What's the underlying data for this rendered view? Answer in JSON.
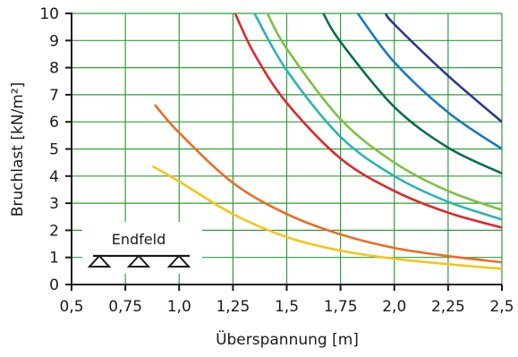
{
  "chart_data": {
    "type": "line",
    "title": "",
    "xlabel": "Überspannung [m]",
    "ylabel": "Bruchlast [kN/m²]",
    "xlim": [
      0.5,
      2.5
    ],
    "ylim": [
      0,
      10
    ],
    "x_ticks": [
      0.5,
      0.75,
      1.0,
      1.25,
      1.5,
      1.75,
      2.0,
      2.25,
      2.5
    ],
    "x_tick_labels": [
      "0,5",
      "0,75",
      "1,0",
      "1,25",
      "1,5",
      "1,75",
      "2,0",
      "2,25",
      "2,5"
    ],
    "y_ticks": [
      0,
      1,
      2,
      3,
      4,
      5,
      6,
      7,
      8,
      9,
      10
    ],
    "y_tick_labels": [
      "0",
      "1",
      "2",
      "3",
      "4",
      "5",
      "6",
      "7",
      "8",
      "9",
      "10"
    ],
    "grid": true,
    "legend": "none",
    "annotation": "Endfeld",
    "colors": {
      "grid": "#2e9e3a",
      "axes": "#1a1a1a"
    },
    "series": [
      {
        "color": "#f5c518",
        "x": [
          0.88,
          1.0,
          1.25,
          1.5,
          1.75,
          2.0,
          2.25,
          2.5
        ],
        "y": [
          4.35,
          3.8,
          2.6,
          1.75,
          1.25,
          0.95,
          0.75,
          0.58
        ]
      },
      {
        "color": "#ee6a24",
        "x": [
          0.89,
          1.0,
          1.25,
          1.5,
          1.75,
          2.0,
          2.25,
          2.5
        ],
        "y": [
          6.6,
          5.6,
          3.75,
          2.6,
          1.85,
          1.35,
          1.05,
          0.82
        ]
      },
      {
        "color": "#e0262e",
        "x": [
          1.26,
          1.35,
          1.5,
          1.75,
          2.0,
          2.25,
          2.5
        ],
        "y": [
          10,
          8.5,
          6.7,
          4.65,
          3.45,
          2.65,
          2.1
        ]
      },
      {
        "color": "#2bb3b3",
        "x": [
          1.35,
          1.5,
          1.75,
          2.0,
          2.25,
          2.5
        ],
        "y": [
          10,
          7.9,
          5.45,
          4.0,
          3.05,
          2.4
        ]
      },
      {
        "color": "#7cc142",
        "x": [
          1.41,
          1.5,
          1.75,
          2.0,
          2.25,
          2.5
        ],
        "y": [
          10,
          8.7,
          6.1,
          4.5,
          3.45,
          2.75
        ]
      },
      {
        "color": "#0a6e4e",
        "x": [
          1.67,
          1.75,
          2.0,
          2.25,
          2.5
        ],
        "y": [
          10,
          8.95,
          6.55,
          5.05,
          4.1
        ]
      },
      {
        "color": "#1a78c2",
        "x": [
          1.83,
          2.0,
          2.25,
          2.5
        ],
        "y": [
          10,
          8.2,
          6.35,
          5.0
        ]
      },
      {
        "color": "#2e3591",
        "x": [
          1.96,
          2.0,
          2.25,
          2.5
        ],
        "y": [
          10,
          9.6,
          7.7,
          6.0
        ]
      }
    ]
  }
}
